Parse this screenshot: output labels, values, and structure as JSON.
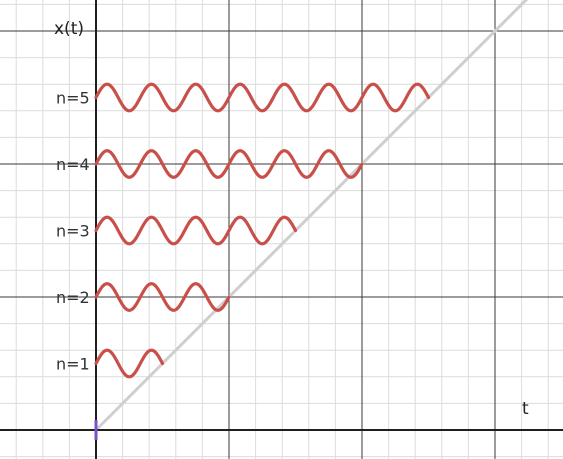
{
  "title": "",
  "axes": {
    "x_label": "t",
    "y_label": "x(t)"
  },
  "levels": [
    {
      "label": "n=1",
      "n": 1
    },
    {
      "label": "n=2",
      "n": 2
    },
    {
      "label": "n=3",
      "n": 3
    },
    {
      "label": "n=4",
      "n": 4
    },
    {
      "label": "n=5",
      "n": 5
    }
  ],
  "wave": {
    "description_free": true,
    "cycles_per_n": 1,
    "amplitude_units": 0.5
  },
  "colors": {
    "wave": "#c9504a",
    "diagonal": "#cfcfcf",
    "axis": "#1f1f1f",
    "grid_minor": "#dcdcdc",
    "grid_major": "#3a3a3a",
    "origin_mark": "#7b4fc9"
  }
}
